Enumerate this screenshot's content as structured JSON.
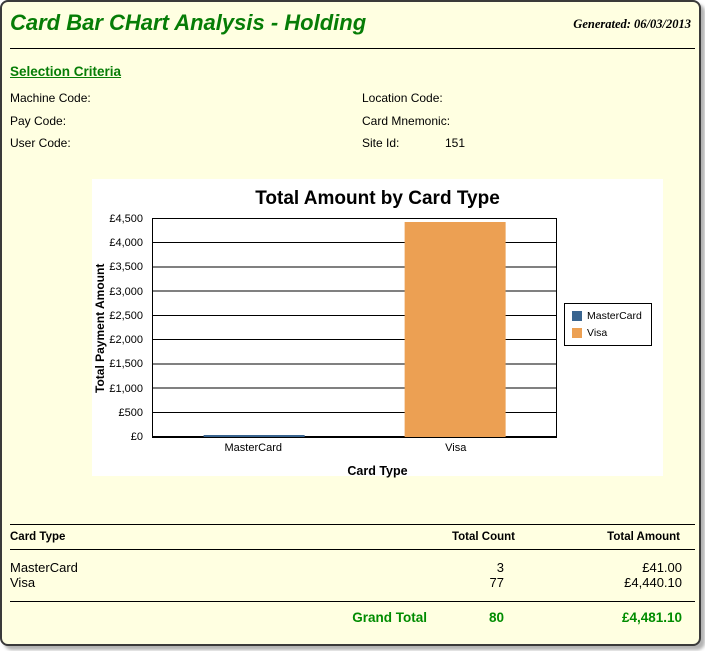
{
  "header": {
    "title": "Card Bar CHart Analysis - Holding",
    "generated": "Generated: 06/03/2013"
  },
  "selection_criteria": {
    "heading": "Selection Criteria",
    "left_fields": [
      {
        "label": "Machine Code:",
        "value": ""
      },
      {
        "label": "Pay Code:",
        "value": ""
      },
      {
        "label": "User Code:",
        "value": ""
      }
    ],
    "right_fields": [
      {
        "label": "Location Code:",
        "value": ""
      },
      {
        "label": "Card Mnemonic:",
        "value": ""
      },
      {
        "label": "Site Id:",
        "value": "151"
      }
    ]
  },
  "chart_data": {
    "type": "bar",
    "title": "Total Amount by Card Type",
    "xlabel": "Card Type",
    "ylabel": "Total Payment Amount",
    "categories": [
      "MasterCard",
      "Visa"
    ],
    "values": [
      41.0,
      4440.1
    ],
    "colors": [
      "#39648F",
      "#ECA053"
    ],
    "ylim": [
      0,
      4500
    ],
    "ytick_step": 500,
    "ytick_labels_top_down": [
      "£4,500",
      "£4,000",
      "£3,500",
      "£3,000",
      "£2,500",
      "£2,000",
      "£1,500",
      "£1,000",
      "£500",
      "£0"
    ],
    "grid": true,
    "legend_position": "right",
    "legend": [
      {
        "label": "MasterCard",
        "color": "#39648F"
      },
      {
        "label": "Visa",
        "color": "#ECA053"
      }
    ]
  },
  "table": {
    "headers": {
      "card_type": "Card Type",
      "total_count": "Total Count",
      "total_amount": "Total Amount"
    },
    "rows": [
      {
        "card_type": "MasterCard",
        "total_count": "3",
        "total_amount": "£41.00"
      },
      {
        "card_type": "Visa",
        "total_count": "77",
        "total_amount": "£4,440.10"
      }
    ],
    "grand_total": {
      "label": "Grand Total",
      "total_count": "80",
      "total_amount": "£4,481.10"
    }
  },
  "colors": {
    "page_background": "#FFFFE1",
    "heading_green": "#067d06",
    "grand_total_green": "#008C00",
    "bar_blue": "#39648F",
    "bar_orange": "#ECA053"
  }
}
